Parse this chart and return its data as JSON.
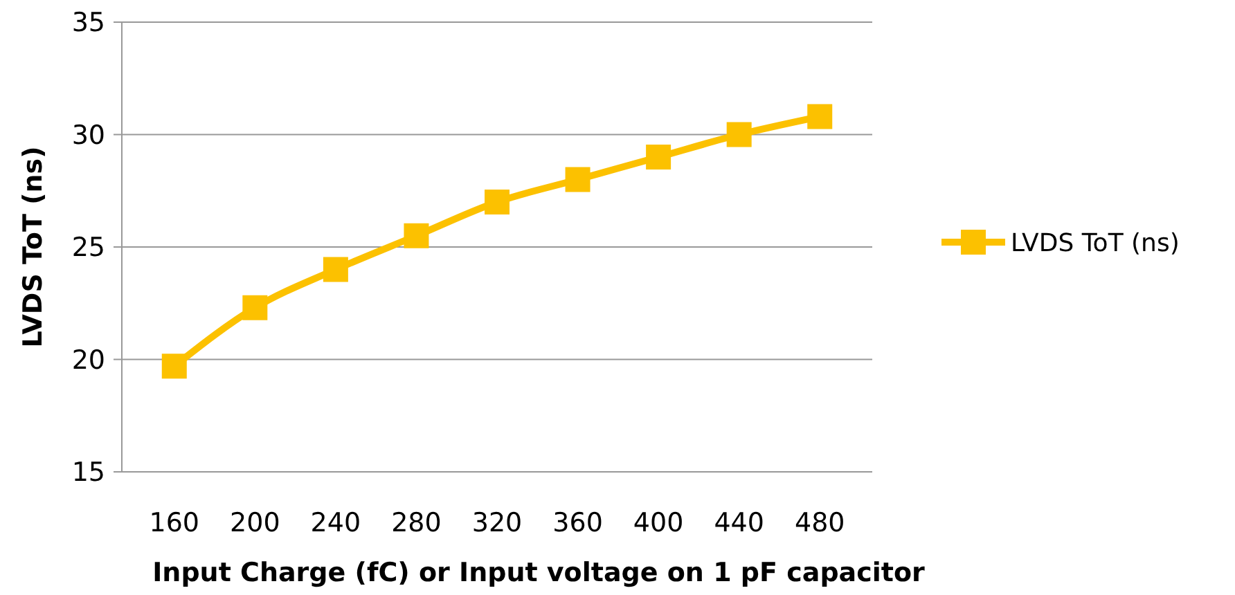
{
  "chart_data": {
    "type": "line",
    "xlabel": "Input Charge (fC) or Input voltage on 1 pF capacitor",
    "ylabel": "LVDS ToT (ns)",
    "categories": [
      "160",
      "200",
      "240",
      "280",
      "320",
      "360",
      "400",
      "440",
      "480"
    ],
    "series": [
      {
        "name": "LVDS ToT (ns)",
        "color": "#fcc100",
        "values": [
          19.7,
          22.3,
          24.0,
          25.5,
          27.0,
          28.0,
          29.0,
          30.0,
          30.8
        ]
      }
    ],
    "ylim": [
      15,
      35
    ],
    "yticks": [
      15,
      20,
      25,
      30,
      35
    ],
    "grid": "y",
    "legend": "right",
    "marker": "square",
    "line_style": "solid"
  }
}
